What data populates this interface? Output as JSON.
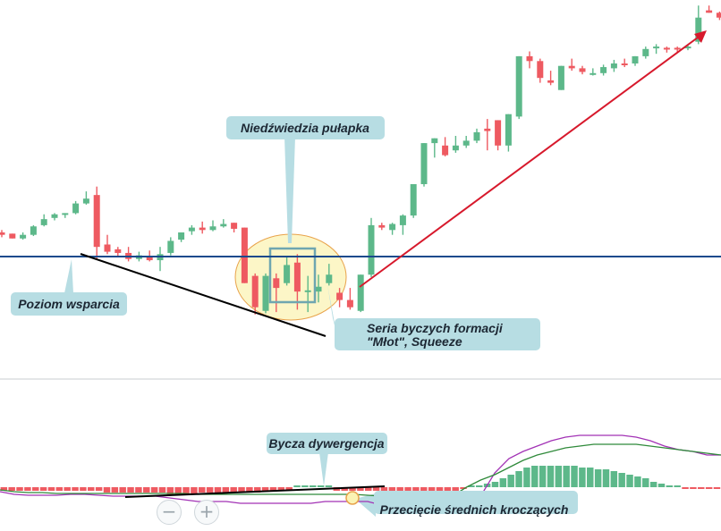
{
  "colors": {
    "bull": "#5db88a",
    "bear": "#ee5a61",
    "support": "#1a4a8c",
    "trend": "#000000",
    "arrow": "#d7192c",
    "callout_bg": "#b7dde3",
    "zone_fill": "#fbf3b4",
    "zone_stroke": "#e8a24a",
    "box_stroke": "#6fa6b0",
    "macd": "#a232b5",
    "signal": "#2f8a3a",
    "divider": "#c9cdd0"
  },
  "annotations": {
    "trap": "Niedźwiedzia pułapka",
    "support": "Poziom wsparcia",
    "series_line1": "Seria byczych formacji",
    "series_line2": "\"Młot\", Squeeze",
    "divergence": "Bycza dywergencja",
    "crossover": "Przecięcie średnich kroczących"
  },
  "controls": {
    "zoom_out": "−",
    "zoom_in": "+"
  },
  "chart_data": [
    {
      "type": "candlestick",
      "support_level": 12,
      "candles": [
        {
          "o": 32,
          "h": 34,
          "l": 28,
          "c": 30
        },
        {
          "o": 31,
          "h": 31,
          "l": 27,
          "c": 27
        },
        {
          "o": 27,
          "h": 32,
          "l": 26,
          "c": 30
        },
        {
          "o": 30,
          "h": 38,
          "l": 29,
          "c": 37
        },
        {
          "o": 38,
          "h": 47,
          "l": 37,
          "c": 43
        },
        {
          "o": 44,
          "h": 48,
          "l": 42,
          "c": 47
        },
        {
          "o": 47,
          "h": 48,
          "l": 44,
          "c": 48
        },
        {
          "o": 48,
          "h": 58,
          "l": 47,
          "c": 56
        },
        {
          "o": 56,
          "h": 66,
          "l": 55,
          "c": 60
        },
        {
          "o": 63,
          "h": 70,
          "l": 10,
          "c": 20
        },
        {
          "o": 22,
          "h": 30,
          "l": 14,
          "c": 16
        },
        {
          "o": 18,
          "h": 20,
          "l": 12,
          "c": 15
        },
        {
          "o": 15,
          "h": 20,
          "l": 8,
          "c": 10
        },
        {
          "o": 10,
          "h": 16,
          "l": 8,
          "c": 13
        },
        {
          "o": 12,
          "h": 17,
          "l": 8,
          "c": 9
        },
        {
          "o": 9,
          "h": 20,
          "l": 0,
          "c": 14
        },
        {
          "o": 15,
          "h": 28,
          "l": 13,
          "c": 25
        },
        {
          "o": 26,
          "h": 32,
          "l": 24,
          "c": 32
        },
        {
          "o": 33,
          "h": 38,
          "l": 30,
          "c": 36
        },
        {
          "o": 36,
          "h": 41,
          "l": 31,
          "c": 34
        },
        {
          "o": 34,
          "h": 42,
          "l": 33,
          "c": 37
        },
        {
          "o": 37,
          "h": 43,
          "l": 36,
          "c": 39
        },
        {
          "o": 40,
          "h": 40,
          "l": 32,
          "c": 35
        },
        {
          "o": 36,
          "h": 36,
          "l": -10,
          "c": -10
        },
        {
          "o": -4,
          "h": -2,
          "l": -36,
          "c": -30
        },
        {
          "o": -33,
          "h": -2,
          "l": -35,
          "c": -4
        },
        {
          "o": -6,
          "h": -2,
          "l": -34,
          "c": -14
        },
        {
          "o": -10,
          "h": 12,
          "l": -12,
          "c": 5
        },
        {
          "o": 7,
          "h": 14,
          "l": -32,
          "c": -17
        },
        {
          "o": -16,
          "h": -4,
          "l": -34,
          "c": -16
        },
        {
          "o": -17,
          "h": -3,
          "l": -26,
          "c": -13
        },
        {
          "o": -10,
          "h": 6,
          "l": -12,
          "c": -3
        },
        {
          "o": -18,
          "h": -14,
          "l": -30,
          "c": -24
        },
        {
          "o": -24,
          "h": -14,
          "l": -32,
          "c": -30
        },
        {
          "o": -33,
          "h": -3,
          "l": -34,
          "c": -3
        },
        {
          "o": -3,
          "h": 44,
          "l": -5,
          "c": 38
        },
        {
          "o": 38,
          "h": 40,
          "l": 34,
          "c": 36
        },
        {
          "o": 34,
          "h": 40,
          "l": 30,
          "c": 39
        },
        {
          "o": 38,
          "h": 47,
          "l": 30,
          "c": 46
        },
        {
          "o": 46,
          "h": 72,
          "l": 44,
          "c": 72
        },
        {
          "o": 72,
          "h": 106,
          "l": 70,
          "c": 106
        },
        {
          "o": 106,
          "h": 110,
          "l": 94,
          "c": 110
        },
        {
          "o": 104,
          "h": 111,
          "l": 95,
          "c": 96
        },
        {
          "o": 100,
          "h": 112,
          "l": 98,
          "c": 104
        },
        {
          "o": 104,
          "h": 112,
          "l": 102,
          "c": 108
        },
        {
          "o": 108,
          "h": 118,
          "l": 106,
          "c": 115
        },
        {
          "o": 118,
          "h": 126,
          "l": 100,
          "c": 116
        },
        {
          "o": 125,
          "h": 125,
          "l": 100,
          "c": 104
        },
        {
          "o": 104,
          "h": 130,
          "l": 99,
          "c": 130
        },
        {
          "o": 128,
          "h": 178,
          "l": 126,
          "c": 178
        },
        {
          "o": 178,
          "h": 182,
          "l": 168,
          "c": 174
        },
        {
          "o": 174,
          "h": 176,
          "l": 156,
          "c": 160
        },
        {
          "o": 158,
          "h": 166,
          "l": 154,
          "c": 156
        },
        {
          "o": 150,
          "h": 170,
          "l": 150,
          "c": 170
        },
        {
          "o": 170,
          "h": 176,
          "l": 166,
          "c": 168
        },
        {
          "o": 168,
          "h": 170,
          "l": 163,
          "c": 165
        },
        {
          "o": 164,
          "h": 168,
          "l": 162,
          "c": 164
        },
        {
          "o": 164,
          "h": 171,
          "l": 162,
          "c": 169
        },
        {
          "o": 168,
          "h": 175,
          "l": 165,
          "c": 172
        },
        {
          "o": 172,
          "h": 176,
          "l": 169,
          "c": 171
        },
        {
          "o": 172,
          "h": 178,
          "l": 170,
          "c": 178
        },
        {
          "o": 178,
          "h": 186,
          "l": 176,
          "c": 184
        },
        {
          "o": 186,
          "h": 188,
          "l": 180,
          "c": 186
        },
        {
          "o": 185,
          "h": 186,
          "l": 181,
          "c": 184
        },
        {
          "o": 185,
          "h": 186,
          "l": 181,
          "c": 184
        },
        {
          "o": 186,
          "h": 187,
          "l": 183,
          "c": 186
        },
        {
          "o": 190,
          "h": 220,
          "l": 188,
          "c": 210
        },
        {
          "o": 216,
          "h": 220,
          "l": 214,
          "c": 214
        },
        {
          "o": 214,
          "h": 215,
          "l": 208,
          "c": 210
        }
      ]
    },
    {
      "type": "macd",
      "histogram": [
        -2,
        -2,
        -2,
        -2,
        -2,
        -2,
        -2,
        -2,
        -2,
        -2,
        -2,
        -2,
        -2,
        -3,
        -3,
        -3,
        -3,
        -3,
        -3,
        -3,
        -3,
        -4,
        -4,
        -4,
        -4,
        -3,
        -3,
        -3,
        -3,
        -3,
        -3,
        -3,
        -3,
        -2,
        -2,
        -2,
        -2,
        0,
        0,
        0,
        0,
        0,
        -2,
        -2,
        -2,
        -2,
        -2,
        -2,
        -2,
        -2,
        -2,
        -2,
        -2,
        -2,
        -2,
        -2,
        -2,
        -2,
        -1,
        0,
        1,
        2,
        3,
        5,
        7,
        9,
        11,
        12,
        12,
        12,
        12,
        12,
        12,
        11,
        11,
        10,
        10,
        9,
        8,
        7,
        6,
        5,
        3,
        2,
        1,
        0,
        -1,
        -1,
        -1,
        -1,
        -1
      ],
      "macd_line": [
        -2.5,
        -4,
        -4.5,
        -4.5,
        -4.5,
        -4,
        -4,
        -4.5,
        -5,
        -5,
        -5,
        -5,
        -6,
        -7,
        -8,
        -8,
        -8,
        -9,
        -9,
        -9,
        -9,
        -9,
        -9,
        -8,
        -8,
        -8,
        -8,
        -10,
        -10,
        -10,
        -11,
        -14,
        -14,
        -8,
        -5,
        8,
        16,
        20,
        23,
        26,
        28,
        29,
        29,
        29,
        29,
        28,
        26,
        23,
        21,
        20,
        18,
        18
      ],
      "signal_line": [
        -1.5,
        -2.5,
        -3,
        -3,
        -3.5,
        -3.5,
        -3.5,
        -3.5,
        -3.5,
        -3.5,
        -3.5,
        -3.5,
        -3.5,
        -3.5,
        -4,
        -4,
        -4,
        -4,
        -4,
        -4,
        -4,
        -4,
        -4,
        -4,
        -4,
        -4,
        -4.5,
        -5,
        -5.5,
        -7,
        -8,
        -8,
        -5,
        0,
        4,
        7,
        11,
        15,
        18,
        20,
        22,
        23,
        24,
        24,
        24,
        24,
        23,
        22,
        21,
        20,
        19,
        18
      ]
    }
  ]
}
